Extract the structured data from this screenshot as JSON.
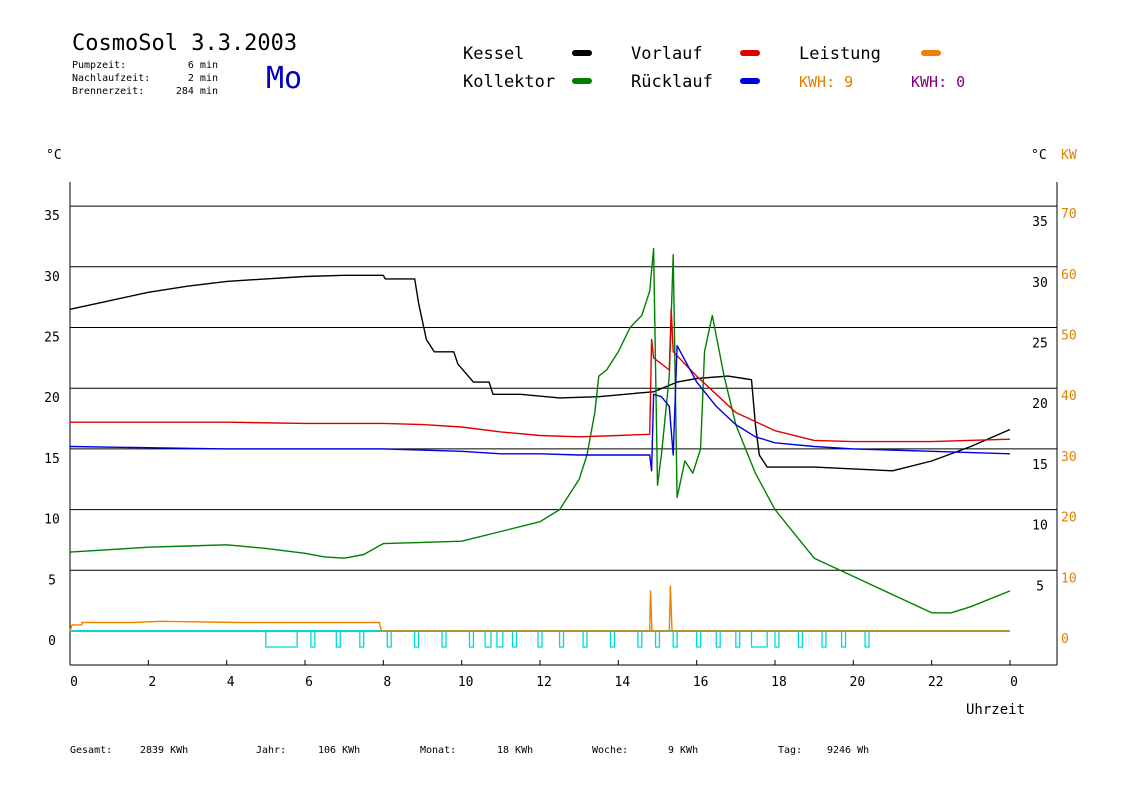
{
  "header": {
    "title": "CosmoSol 3.3.2003",
    "day": "Mo",
    "stats": [
      {
        "label": "Pumpzeit:",
        "value": "6 min"
      },
      {
        "label": "Nachlaufzeit:",
        "value": "2 min"
      },
      {
        "label": "Brennerzeit:",
        "value": "284 min"
      }
    ]
  },
  "legend": [
    {
      "name": "Kessel",
      "color": "#000000"
    },
    {
      "name": "Kollektor",
      "color": "#008000"
    },
    {
      "name": "Vorlauf",
      "color": "#e00000"
    },
    {
      "name": "Rücklauf",
      "color": "#0000e0"
    },
    {
      "name": "Leistung",
      "color": "#f08000"
    }
  ],
  "kwh": [
    {
      "text": "KWH: 9",
      "color": "#e08000"
    },
    {
      "text": "KWH: 0",
      "color": "#800080"
    }
  ],
  "axis_units": {
    "left": "°C",
    "right_c": "°C",
    "right_kw": "KW"
  },
  "footer": [
    {
      "label": "Gesamt:",
      "value": "2839 KWh"
    },
    {
      "label": "Jahr:",
      "value": "106 KWh"
    },
    {
      "label": "Monat:",
      "value": "18 KWh"
    },
    {
      "label": "Woche:",
      "value": "9 KWh"
    },
    {
      "label": "Tag:",
      "value": "9246 Wh"
    }
  ],
  "chart_data": {
    "type": "line",
    "xlabel": "Uhrzeit",
    "x_ticks": [
      "0",
      "2",
      "4",
      "6",
      "8",
      "10",
      "12",
      "14",
      "16",
      "18",
      "20",
      "22",
      "0"
    ],
    "xlim": [
      0,
      24
    ],
    "ylim": [
      0,
      37
    ],
    "y_ticks_left": [
      0,
      5,
      10,
      15,
      20,
      25,
      30,
      35
    ],
    "y_ticks_right_c": [
      5,
      10,
      15,
      20,
      25,
      30,
      35
    ],
    "y_ticks_right_kw": [
      0,
      10,
      20,
      30,
      40,
      50,
      60,
      70
    ],
    "grid": true,
    "series": [
      {
        "name": "Kessel",
        "color": "#000000",
        "points": [
          [
            0,
            26.5
          ],
          [
            1,
            27.2
          ],
          [
            2,
            27.9
          ],
          [
            3,
            28.4
          ],
          [
            4,
            28.8
          ],
          [
            5,
            29.0
          ],
          [
            6,
            29.2
          ],
          [
            7,
            29.3
          ],
          [
            8,
            29.3
          ],
          [
            8.05,
            29.0
          ],
          [
            8.8,
            29.0
          ],
          [
            8.9,
            27
          ],
          [
            9.0,
            25.5
          ],
          [
            9.1,
            24
          ],
          [
            9.3,
            23.0
          ],
          [
            9.8,
            23.0
          ],
          [
            9.9,
            22
          ],
          [
            10.3,
            20.5
          ],
          [
            10.7,
            20.5
          ],
          [
            10.8,
            19.5
          ],
          [
            11.5,
            19.5
          ],
          [
            12.5,
            19.2
          ],
          [
            13.5,
            19.3
          ],
          [
            14.5,
            19.6
          ],
          [
            14.9,
            19.7
          ],
          [
            15.5,
            20.5
          ],
          [
            16.0,
            20.8
          ],
          [
            16.8,
            21.0
          ],
          [
            17.2,
            20.8
          ],
          [
            17.4,
            20.7
          ],
          [
            17.5,
            17
          ],
          [
            17.6,
            14.5
          ],
          [
            17.8,
            13.5
          ],
          [
            19,
            13.5
          ],
          [
            21,
            13.2
          ],
          [
            22,
            14
          ],
          [
            23,
            15.2
          ],
          [
            24,
            16.6
          ]
        ]
      },
      {
        "name": "Kollektor",
        "color": "#008000",
        "points": [
          [
            0,
            6.5
          ],
          [
            1,
            6.7
          ],
          [
            2,
            6.9
          ],
          [
            3,
            7.0
          ],
          [
            4,
            7.1
          ],
          [
            5,
            6.8
          ],
          [
            6,
            6.4
          ],
          [
            6.5,
            6.1
          ],
          [
            7,
            6.0
          ],
          [
            7.5,
            6.3
          ],
          [
            8,
            7.2
          ],
          [
            9,
            7.3
          ],
          [
            10,
            7.4
          ],
          [
            11,
            8.2
          ],
          [
            12,
            9.0
          ],
          [
            12.5,
            10.0
          ],
          [
            13,
            12.5
          ],
          [
            13.2,
            14.5
          ],
          [
            13.4,
            18
          ],
          [
            13.5,
            21
          ],
          [
            13.7,
            21.5
          ],
          [
            14,
            23
          ],
          [
            14.3,
            25
          ],
          [
            14.6,
            26
          ],
          [
            14.8,
            28
          ],
          [
            14.9,
            31.5
          ],
          [
            15.0,
            12
          ],
          [
            15.1,
            14.5
          ],
          [
            15.3,
            21
          ],
          [
            15.4,
            31
          ],
          [
            15.5,
            11
          ],
          [
            15.7,
            14
          ],
          [
            15.9,
            13
          ],
          [
            16.1,
            15
          ],
          [
            16.2,
            23
          ],
          [
            16.4,
            26
          ],
          [
            16.7,
            21
          ],
          [
            17,
            17
          ],
          [
            17.5,
            13
          ],
          [
            18,
            10
          ],
          [
            18.5,
            8
          ],
          [
            19,
            6
          ],
          [
            20,
            4.5
          ],
          [
            21,
            3
          ],
          [
            22,
            1.5
          ],
          [
            22.5,
            1.5
          ],
          [
            23,
            2
          ],
          [
            24,
            3.3
          ]
        ]
      },
      {
        "name": "Vorlauf",
        "color": "#e00000",
        "points": [
          [
            0,
            17.2
          ],
          [
            2,
            17.2
          ],
          [
            4,
            17.2
          ],
          [
            6,
            17.1
          ],
          [
            8,
            17.1
          ],
          [
            9,
            17.0
          ],
          [
            10,
            16.8
          ],
          [
            11,
            16.4
          ],
          [
            12,
            16.1
          ],
          [
            13,
            16.0
          ],
          [
            14,
            16.1
          ],
          [
            14.8,
            16.2
          ],
          [
            14.85,
            24
          ],
          [
            14.9,
            22.5
          ],
          [
            15.3,
            21.5
          ],
          [
            15.35,
            26.5
          ],
          [
            15.4,
            23
          ],
          [
            16,
            21
          ],
          [
            16.5,
            19.5
          ],
          [
            17,
            18
          ],
          [
            18,
            16.5
          ],
          [
            19,
            15.7
          ],
          [
            20,
            15.6
          ],
          [
            22,
            15.6
          ],
          [
            24,
            15.8
          ]
        ]
      },
      {
        "name": "Rücklauf",
        "color": "#0000e0",
        "points": [
          [
            0,
            15.2
          ],
          [
            2,
            15.1
          ],
          [
            4,
            15.0
          ],
          [
            6,
            15.0
          ],
          [
            8,
            15.0
          ],
          [
            10,
            14.8
          ],
          [
            11,
            14.6
          ],
          [
            12,
            14.6
          ],
          [
            13,
            14.5
          ],
          [
            14,
            14.5
          ],
          [
            14.8,
            14.5
          ],
          [
            14.85,
            13.2
          ],
          [
            14.9,
            19.5
          ],
          [
            15.1,
            19.3
          ],
          [
            15.3,
            18.5
          ],
          [
            15.4,
            14.5
          ],
          [
            15.5,
            23.5
          ],
          [
            16,
            20.5
          ],
          [
            16.5,
            18.5
          ],
          [
            17,
            17
          ],
          [
            17.5,
            16
          ],
          [
            18,
            15.5
          ],
          [
            19,
            15.2
          ],
          [
            20,
            15.0
          ],
          [
            22,
            14.8
          ],
          [
            24,
            14.6
          ]
        ]
      },
      {
        "name": "Leistung",
        "color": "#f08000",
        "points": [
          [
            0,
            0
          ],
          [
            0.05,
            0.5
          ],
          [
            0.3,
            0.5
          ],
          [
            0.3,
            0.7
          ],
          [
            1.6,
            0.7
          ],
          [
            2.3,
            0.8
          ],
          [
            4.3,
            0.7
          ],
          [
            5.6,
            0.7
          ],
          [
            7.9,
            0.7
          ],
          [
            7.95,
            0
          ],
          [
            14.8,
            0
          ],
          [
            14.82,
            3.3
          ],
          [
            14.86,
            0
          ],
          [
            15.3,
            0
          ],
          [
            15.33,
            3.7
          ],
          [
            15.37,
            0
          ],
          [
            24,
            0
          ]
        ]
      }
    ],
    "pump_pulses": [
      [
        5.0,
        5.8
      ],
      [
        6.15,
        6.25
      ],
      [
        6.8,
        6.9
      ],
      [
        7.4,
        7.5
      ],
      [
        8.1,
        8.2
      ],
      [
        8.8,
        8.9
      ],
      [
        9.5,
        9.6
      ],
      [
        10.2,
        10.3
      ],
      [
        10.6,
        10.75
      ],
      [
        10.9,
        11.05
      ],
      [
        11.3,
        11.4
      ],
      [
        11.95,
        12.05
      ],
      [
        12.5,
        12.6
      ],
      [
        13.1,
        13.2
      ],
      [
        13.8,
        13.9
      ],
      [
        14.5,
        14.6
      ],
      [
        14.95,
        15.05
      ],
      [
        15.4,
        15.5
      ],
      [
        16.0,
        16.1
      ],
      [
        16.5,
        16.6
      ],
      [
        17.0,
        17.1
      ],
      [
        17.4,
        17.8
      ],
      [
        18.0,
        18.1
      ],
      [
        18.6,
        18.7
      ],
      [
        19.2,
        19.3
      ],
      [
        19.7,
        19.8
      ],
      [
        20.3,
        20.4
      ]
    ]
  }
}
